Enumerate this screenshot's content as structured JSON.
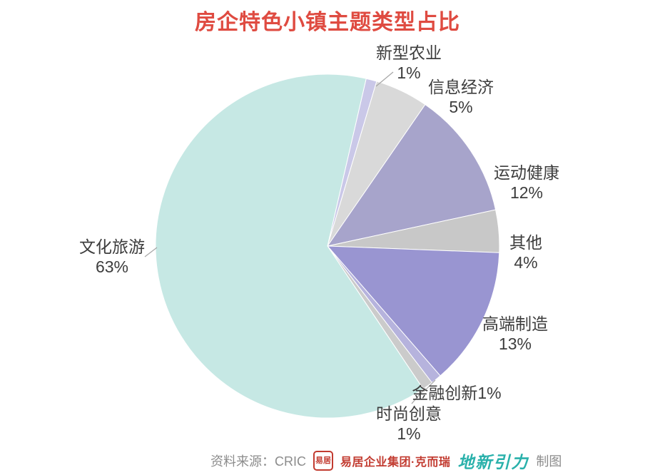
{
  "colors": {
    "background": "#ffffff",
    "title": "#df4b41",
    "label_text": "#3d3d3d",
    "leader_line": "#a6a6a6",
    "footer_text": "#8c8c8c",
    "brand_red": "#c23b30",
    "brand_teal": "#2ab1ab"
  },
  "chart_data": {
    "type": "pie",
    "title": "房企特色小镇主题类型占比",
    "start_angle_deg": 13,
    "direction": "clockwise",
    "legend_position": "none",
    "labels_position": "outside",
    "slices": [
      {
        "label": "新型农业",
        "value": 1,
        "percent_label": "1%",
        "color": "#cac8e8"
      },
      {
        "label": "信息经济",
        "value": 5,
        "percent_label": "5%",
        "color": "#d9d9d9"
      },
      {
        "label": "运动健康",
        "value": 12,
        "percent_label": "12%",
        "color": "#a7a4cb"
      },
      {
        "label": "其他",
        "value": 4,
        "percent_label": "4%",
        "color": "#c8c8c8"
      },
      {
        "label": "高端制造",
        "value": 13,
        "percent_label": "13%",
        "color": "#9995d1"
      },
      {
        "label": "金融创新",
        "value": 1,
        "percent_label": "1%",
        "color": "#b6b3dd"
      },
      {
        "label": "时尚创意",
        "value": 1,
        "percent_label": "1%",
        "color": "#cbcbcb"
      },
      {
        "label": "文化旅游",
        "value": 63,
        "percent_label": "63%",
        "color": "#c6e8e4"
      }
    ]
  },
  "footer": {
    "source_label": "资料来源：CRIC",
    "seal_text": "易居",
    "cric_text": "易居企业集团·克而瑞",
    "dxyl_text": "地新引力",
    "credit": "制图"
  }
}
